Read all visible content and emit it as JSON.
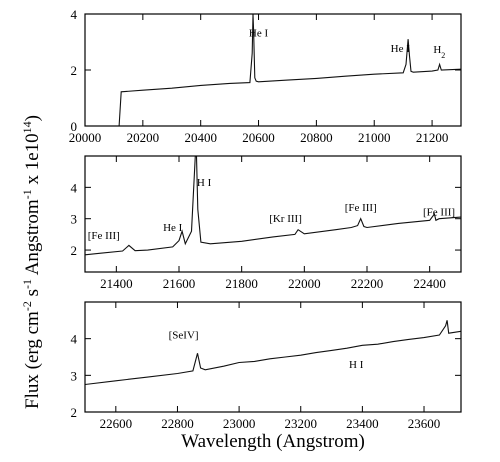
{
  "figure": {
    "ylabel_text": "Flux (erg cm",
    "ylabel_sup1": "-2",
    "ylabel_mid1": " s",
    "ylabel_sup2": "-1",
    "ylabel_mid2": " Angstrom",
    "ylabel_sup3": "-1",
    "ylabel_mid3": " x 1e10",
    "ylabel_sup4": "14",
    "ylabel_end": ")",
    "xlabel": "Wavelength (Angstrom)"
  },
  "chart_data": [
    {
      "type": "line",
      "xlim": [
        20000,
        21300
      ],
      "ylim": [
        0,
        4
      ],
      "xticks": [
        "20000",
        "20200",
        "20400",
        "20600",
        "20800",
        "21000",
        "21200"
      ],
      "yticks": [
        "0",
        "2",
        "4"
      ],
      "x": [
        20000,
        20115,
        20118,
        20125,
        20200,
        20300,
        20400,
        20500,
        20570,
        20578,
        20581,
        20583,
        20587,
        20592,
        20600,
        20700,
        20800,
        20900,
        21000,
        21100,
        21110,
        21117,
        21122,
        21127,
        21135,
        21200,
        21220,
        21226,
        21232,
        21300
      ],
      "y": [
        0,
        0,
        0,
        1.22,
        1.28,
        1.35,
        1.45,
        1.52,
        1.55,
        2.6,
        4.0,
        3.4,
        1.72,
        1.6,
        1.58,
        1.64,
        1.7,
        1.78,
        1.85,
        1.9,
        2.2,
        3.1,
        2.5,
        1.95,
        1.92,
        1.96,
        2.0,
        2.2,
        2.0,
        2.03
      ],
      "annotations": [
        {
          "text": "He I",
          "x": 20600,
          "y": 3.2
        },
        {
          "text": "He I",
          "x": 21090,
          "y": 2.65
        },
        {
          "text": "H",
          "sub": "2",
          "x": 21225,
          "y": 2.6
        }
      ]
    },
    {
      "type": "line",
      "xlim": [
        21300,
        22500
      ],
      "ylim": [
        1.3,
        5.0
      ],
      "xticks": [
        "21400",
        "21600",
        "21800",
        "22000",
        "22200",
        "22400"
      ],
      "yticks": [
        "2",
        "3",
        "4"
      ],
      "x": [
        21300,
        21350,
        21420,
        21440,
        21460,
        21500,
        21580,
        21600,
        21610,
        21620,
        21640,
        21652,
        21656,
        21660,
        21670,
        21700,
        21800,
        21900,
        21970,
        21980,
        22000,
        22100,
        22150,
        22170,
        22180,
        22190,
        22200,
        22300,
        22400,
        22415,
        22420,
        22430,
        22500
      ],
      "y": [
        1.85,
        1.9,
        1.97,
        2.15,
        1.98,
        2.0,
        2.1,
        2.3,
        2.6,
        2.2,
        2.6,
        5.0,
        5.0,
        3.3,
        2.25,
        2.2,
        2.28,
        2.42,
        2.5,
        2.65,
        2.52,
        2.65,
        2.72,
        2.78,
        3.0,
        2.75,
        2.72,
        2.85,
        2.95,
        3.15,
        2.95,
        3.0,
        3.05
      ],
      "annotations": [
        {
          "text": "[Fe III]",
          "x": 21360,
          "y": 2.35
        },
        {
          "text": "He I",
          "x": 21580,
          "y": 2.6
        },
        {
          "text": "H I",
          "x": 21680,
          "y": 4.05
        },
        {
          "text": "[Kr III]",
          "x": 21940,
          "y": 2.9
        },
        {
          "text": "[Fe III]",
          "x": 22180,
          "y": 3.25
        },
        {
          "text": "[Fe III]",
          "x": 22430,
          "y": 3.1
        }
      ]
    },
    {
      "type": "line",
      "xlim": [
        22500,
        23720
      ],
      "ylim": [
        2,
        5
      ],
      "xticks": [
        "22600",
        "22800",
        "23000",
        "23200",
        "23400",
        "23600"
      ],
      "yticks": [
        "2",
        "3",
        "4"
      ],
      "x": [
        22500,
        22600,
        22700,
        22800,
        22850,
        22865,
        22875,
        22890,
        22950,
        23000,
        23050,
        23100,
        23150,
        23200,
        23250,
        23300,
        23350,
        23400,
        23450,
        23500,
        23550,
        23600,
        23650,
        23670,
        23675,
        23680,
        23720
      ],
      "y": [
        2.75,
        2.85,
        2.95,
        3.05,
        3.12,
        3.6,
        3.2,
        3.15,
        3.25,
        3.35,
        3.38,
        3.45,
        3.5,
        3.55,
        3.62,
        3.68,
        3.74,
        3.82,
        3.85,
        3.92,
        3.98,
        4.03,
        4.1,
        4.35,
        4.5,
        4.15,
        4.2
      ],
      "annotations": [
        {
          "text": "[SeIV]",
          "x": 22820,
          "y": 4.0
        },
        {
          "text": "H I",
          "x": 23380,
          "y": 3.2
        }
      ]
    }
  ]
}
